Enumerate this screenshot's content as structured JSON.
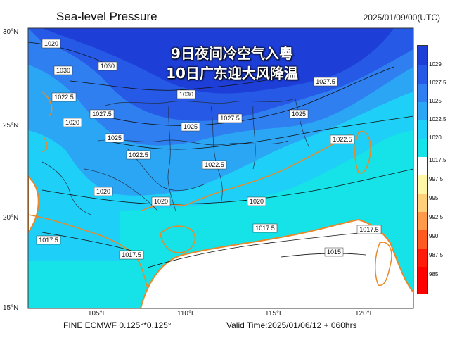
{
  "header": {
    "title": "Sea-level Pressure",
    "date": "2025/01/09/00(UTC)"
  },
  "headline": {
    "line1": "9日夜间冷空气入粤",
    "line2": "10日广东迎大风降温"
  },
  "footer": {
    "model": "FINE ECMWF 0.125°*0.125°",
    "valid": "Valid Time:2025/01/06/12 + 060hrs"
  },
  "axes": {
    "lat_ticks": [
      "30°N",
      "25°N",
      "20°N",
      "15°N"
    ],
    "lon_ticks": [
      "105°E",
      "110°E",
      "115°E",
      "120°E"
    ]
  },
  "colorbar": {
    "labels": [
      "1029",
      "1027.5",
      "1025",
      "1022.5",
      "1020",
      "1017.5",
      "997.5",
      "995",
      "992.5",
      "990",
      "987.5",
      "985"
    ],
    "colors": [
      "#1e3ed8",
      "#2659e6",
      "#2f7ff0",
      "#2aa6f5",
      "#1ed0f7",
      "#15e3e8",
      "#ffffff",
      "#fff6a8",
      "#ffd07a",
      "#ff9a4a",
      "#ff5a1f",
      "#ff1a0a"
    ]
  },
  "isobar_labels": [
    "1020",
    "1030",
    "1030",
    "1022.5",
    "1027.5",
    "1030",
    "1027.5",
    "1020",
    "1025",
    "1025",
    "1027.5",
    "1025",
    "1022.5",
    "1022.5",
    "1022.5",
    "1020",
    "1020",
    "1020",
    "1017.5",
    "1017.5",
    "1017.5",
    "1017.5",
    "1015"
  ],
  "colors": {
    "coastline": "#e8882a",
    "border": "#20304a",
    "isobar": "#111111"
  }
}
